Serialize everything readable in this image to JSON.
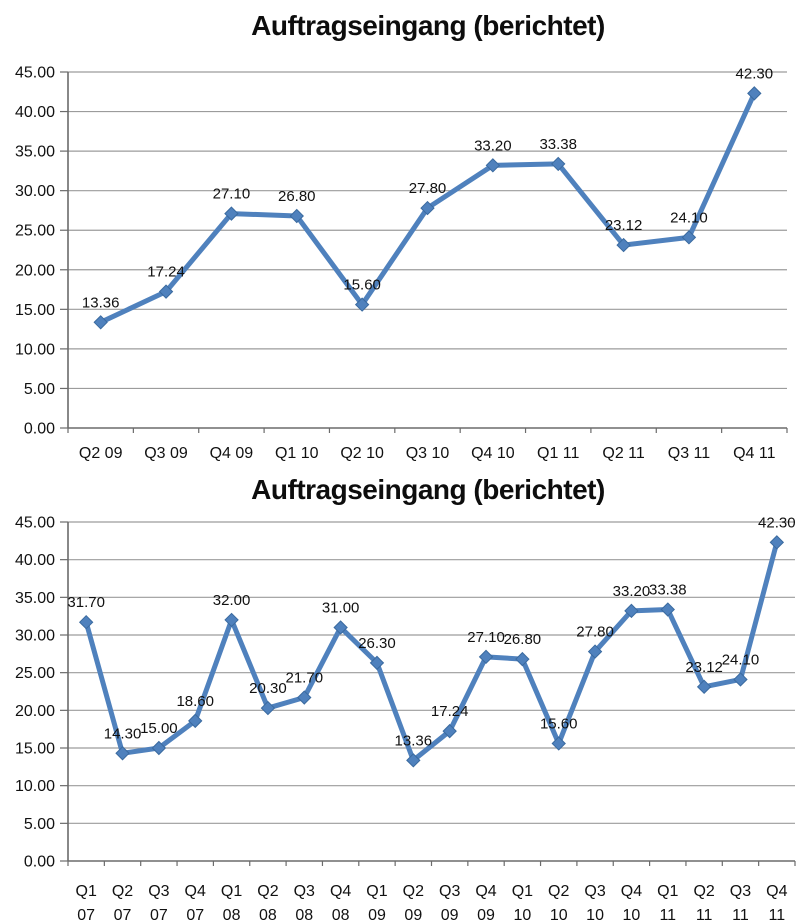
{
  "chart_data": [
    {
      "type": "line",
      "title": "Auftragseingang (berichtet)",
      "categories": [
        "Q2 09",
        "Q3 09",
        "Q4 09",
        "Q1 10",
        "Q2 10",
        "Q3 10",
        "Q4 10",
        "Q1 11",
        "Q2 11",
        "Q3 11",
        "Q4 11"
      ],
      "values": [
        13.36,
        17.24,
        27.1,
        26.8,
        15.6,
        27.8,
        33.2,
        33.38,
        23.12,
        24.1,
        42.3
      ],
      "xlabel": "",
      "ylabel": "",
      "ylim": [
        0,
        45
      ],
      "ytick_step": 5,
      "tick_decimals": 2,
      "data_label_decimals": 2,
      "grid": true,
      "legend": "none",
      "marker": "diamond",
      "data_labels": true,
      "x_label_two_line": false
    },
    {
      "type": "line",
      "title": "Auftragseingang (berichtet)",
      "categories": [
        "Q1 07",
        "Q2 07",
        "Q3 07",
        "Q4 07",
        "Q1 08",
        "Q2 08",
        "Q3 08",
        "Q4 08",
        "Q1 09",
        "Q2 09",
        "Q3 09",
        "Q4 09",
        "Q1 10",
        "Q2 10",
        "Q3 10",
        "Q4 10",
        "Q1 11",
        "Q2 11",
        "Q3 11",
        "Q4 11"
      ],
      "values": [
        31.7,
        14.3,
        15.0,
        18.6,
        32.0,
        20.3,
        21.7,
        31.0,
        26.3,
        13.36,
        17.24,
        27.1,
        26.8,
        15.6,
        27.8,
        33.2,
        33.38,
        23.12,
        24.1,
        42.3
      ],
      "xlabel": "",
      "ylabel": "",
      "ylim": [
        0,
        45
      ],
      "ytick_step": 5,
      "tick_decimals": 2,
      "data_label_decimals": 2,
      "grid": true,
      "legend": "none",
      "marker": "diamond",
      "data_labels": true,
      "x_label_two_line": true
    }
  ],
  "styles": {
    "series_color": "#4F81BD",
    "marker_border_color": "#3A6A9F",
    "grid_color": "#9C9C9C",
    "axis_color": "#6B6B6B",
    "text_color": "#111111",
    "title_color": "#0d0d0d",
    "background": "#FFFFFF"
  }
}
